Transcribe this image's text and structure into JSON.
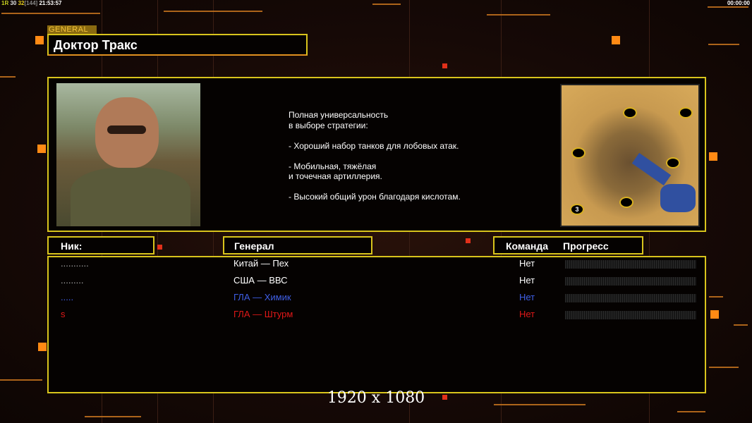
{
  "status": {
    "fps_label": "1R",
    "a": "30",
    "b": "32",
    "c": "[144]",
    "clock": "21:53:57",
    "timer": "00:00:00"
  },
  "general": {
    "tag": "GENERAL",
    "name": "Доктор Тракс",
    "description": [
      "Полная универсальность",
      "в выборе стратегии:",
      "",
      "- Хороший набор танков для лобовых атак.",
      "",
      "- Мобильная, тяжёлая",
      "и точечная артиллерия.",
      "",
      "- Высокий общий урон благодаря кислотам."
    ],
    "map_player_marker": "3"
  },
  "columns": {
    "nick": "Ник:",
    "general": "Генерал",
    "team": "Команда",
    "progress": "Прогресс"
  },
  "players": [
    {
      "nick": "...........",
      "general": "Китай — Пех",
      "team": "Нет",
      "color": "#ffffff",
      "progress": 0
    },
    {
      "nick": ".........",
      "general": "США — ВВС",
      "team": "Нет",
      "color": "#ffffff",
      "progress": 0
    },
    {
      "nick": ".....",
      "general": "ГЛА — Химик",
      "team": "Нет",
      "color": "#3f5fe6",
      "progress": 0
    },
    {
      "nick": "s",
      "general": "ГЛА — Штурм",
      "team": "Нет",
      "color": "#e01818",
      "progress": 0
    }
  ],
  "resolution": "1920 x 1080",
  "colors": {
    "frame": "#d8c41c",
    "accent": "#ff8a14"
  }
}
